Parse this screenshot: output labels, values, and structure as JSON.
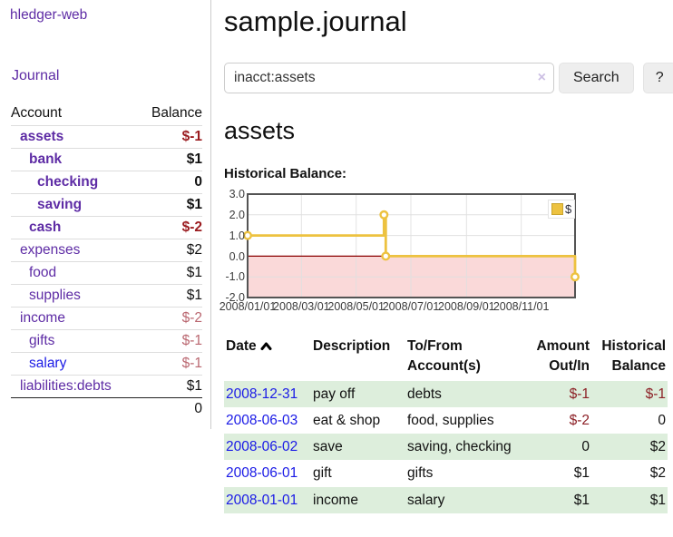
{
  "brand": "hledger-web",
  "nav": {
    "journal": "Journal"
  },
  "sidebar": {
    "headers": {
      "account": "Account",
      "balance": "Balance"
    },
    "rows": [
      {
        "name": "assets",
        "balance": "$-1",
        "depth": 1,
        "strong": true,
        "neg": "dark"
      },
      {
        "name": "bank",
        "balance": "$1",
        "depth": 2,
        "strong": true
      },
      {
        "name": "checking",
        "balance": "0",
        "depth": 3,
        "strong": true
      },
      {
        "name": "saving",
        "balance": "$1",
        "depth": 3,
        "strong": true
      },
      {
        "name": "cash",
        "balance": "$-2",
        "depth": 2,
        "strong": true,
        "neg": "dark"
      },
      {
        "name": "expenses",
        "balance": "$2",
        "depth": 1
      },
      {
        "name": "food",
        "balance": "$1",
        "depth": 2
      },
      {
        "name": "supplies",
        "balance": "$1",
        "depth": 2
      },
      {
        "name": "income",
        "balance": "$-2",
        "depth": 1,
        "neg": "soft"
      },
      {
        "name": "gifts",
        "balance": "$-1",
        "depth": 2,
        "neg": "soft"
      },
      {
        "name": "salary",
        "balance": "$-1",
        "depth": 2,
        "neg": "soft",
        "unvisited": true
      },
      {
        "name": "liabilities:debts",
        "balance": "$1",
        "depth": 1
      }
    ],
    "total": "0"
  },
  "header": {
    "title": "sample.journal"
  },
  "search": {
    "value": "inacct:assets",
    "clear": "×",
    "submit": "Search",
    "help": "?"
  },
  "account_page": {
    "heading": "assets",
    "chart_title": "Historical Balance:"
  },
  "chart_data": {
    "type": "line",
    "title": "Historical Balance",
    "legend_label": "$",
    "legend_position": "top-right",
    "grid": true,
    "x_range": [
      "2008/01/01",
      "2008/12/31"
    ],
    "y_range": [
      -2,
      3
    ],
    "x_ticks": [
      "2008/01/01",
      "2008/03/01",
      "2008/05/01",
      "2008/07/01",
      "2008/09/01",
      "2008/11/01"
    ],
    "y_ticks": [
      {
        "v": 3,
        "label": "3.0"
      },
      {
        "v": 2,
        "label": "2.0"
      },
      {
        "v": 1,
        "label": "1.0"
      },
      {
        "v": 0,
        "label": "0.0"
      },
      {
        "v": -1,
        "label": "-1.0"
      },
      {
        "v": -2,
        "label": "-2.0"
      }
    ],
    "series": [
      {
        "name": "$",
        "step": true,
        "points": [
          {
            "date": "2008/01/01",
            "value": 1
          },
          {
            "date": "2008/06/01",
            "value": 2
          },
          {
            "date": "2008/06/03",
            "value": 0
          },
          {
            "date": "2008/12/31",
            "value": -1
          }
        ]
      }
    ],
    "line_color": "#EDC240",
    "marker_fill": "#FFFFFF",
    "negative_region_color": "#FAD9D9",
    "zero_line_color": "#8B0000",
    "grid_color": "#E0E0E0",
    "border_color": "#545454"
  },
  "register": {
    "headers": {
      "date": "Date",
      "description": "Description",
      "accounts": "To/From Account(s)",
      "amount": "Amount Out/In",
      "balance": "Historical Balance"
    },
    "rows": [
      {
        "date": "2008-12-31",
        "description": "pay off",
        "accounts": "debts",
        "amount": "$-1",
        "amount_neg": true,
        "balance": "$-1",
        "balance_neg": true
      },
      {
        "date": "2008-06-03",
        "description": "eat & shop",
        "accounts": "food, supplies",
        "amount": "$-2",
        "amount_neg": true,
        "balance": "0"
      },
      {
        "date": "2008-06-02",
        "description": "save",
        "accounts": "saving, checking",
        "amount": "0",
        "balance": "$2"
      },
      {
        "date": "2008-06-01",
        "description": "gift",
        "accounts": "gifts",
        "amount": "$1",
        "balance": "$2"
      },
      {
        "date": "2008-01-01",
        "description": "income",
        "accounts": "salary",
        "amount": "$1",
        "balance": "$1"
      }
    ]
  }
}
